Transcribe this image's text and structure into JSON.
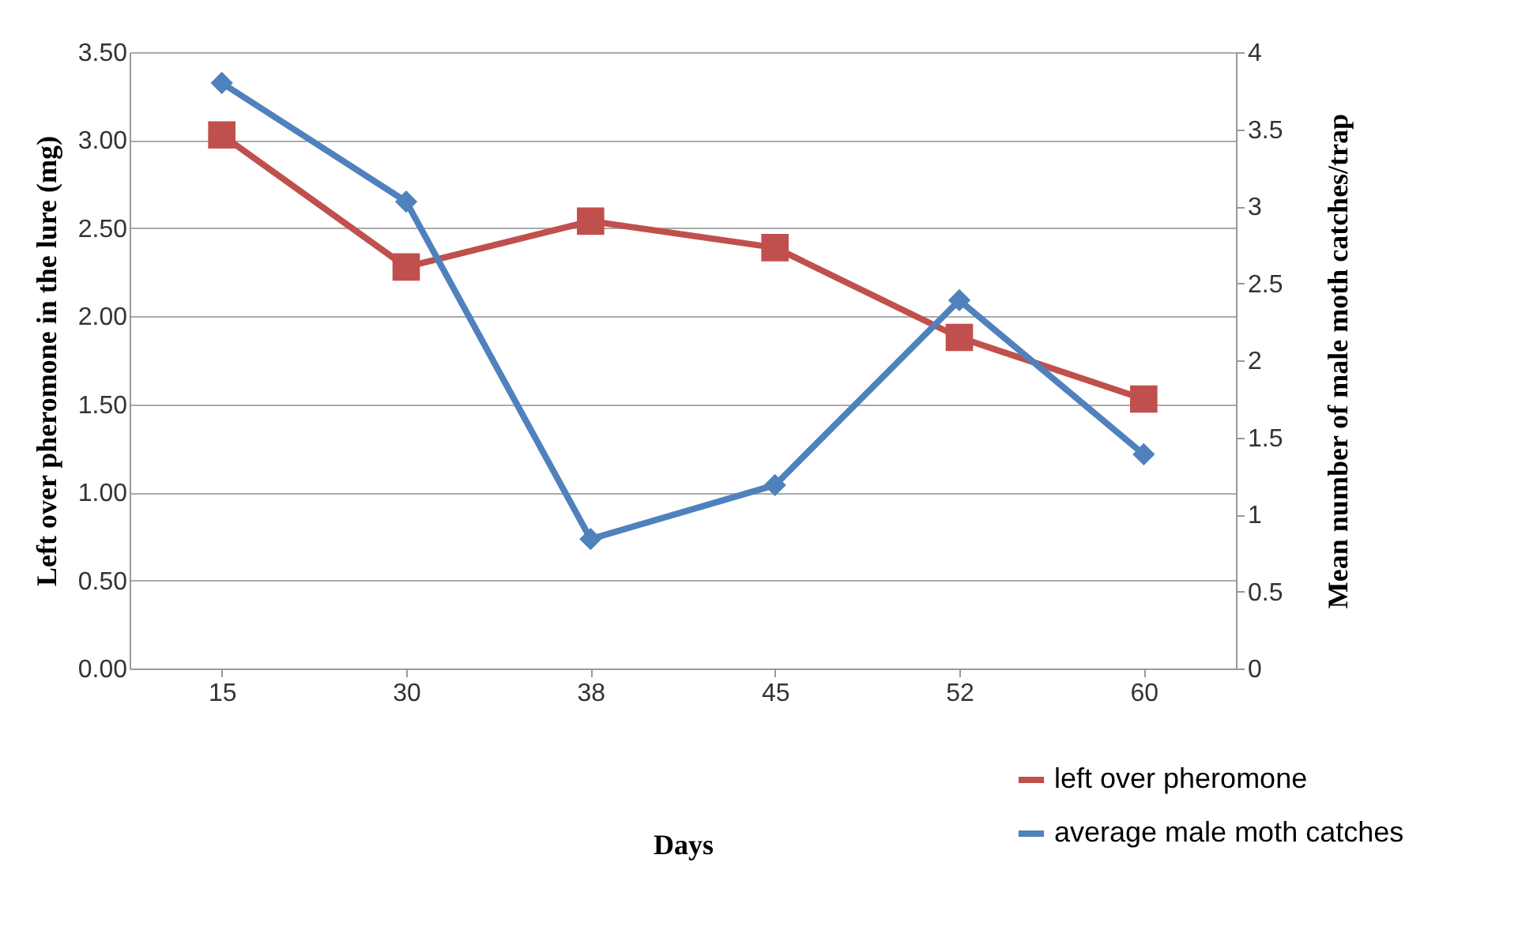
{
  "chart_data": {
    "type": "line",
    "xlabel": "Days",
    "ylabel": "Left over pheromone in the lure  (mg)",
    "y2label": "Mean number  of male moth catches/trap",
    "categories": [
      "15",
      "30",
      "38",
      "45",
      "52",
      "60"
    ],
    "series": [
      {
        "name": "left over pheromone",
        "color": "#c0504d",
        "marker": "square",
        "values": [
          3.03,
          2.28,
          2.54,
          2.39,
          1.88,
          1.53
        ]
      },
      {
        "name": "average male moth catches",
        "color": "#4f81bd",
        "marker": "diamond",
        "axis": "y2",
        "values": [
          3.8,
          3.03,
          0.84,
          1.19,
          2.39,
          1.39
        ]
      }
    ],
    "ylim": [
      0,
      3.5
    ],
    "yticks": [
      {
        "value": 0,
        "label": "0.00"
      },
      {
        "value": 0.5,
        "label": "0.50"
      },
      {
        "value": 1,
        "label": "1.00"
      },
      {
        "value": 1.5,
        "label": "1.50"
      },
      {
        "value": 2,
        "label": "2.00"
      },
      {
        "value": 2.5,
        "label": "2.50"
      },
      {
        "value": 3,
        "label": "3.00"
      },
      {
        "value": 3.5,
        "label": "3.50"
      }
    ],
    "y2lim": [
      0,
      4
    ],
    "y2ticks": [
      0,
      0.5,
      1,
      1.5,
      2,
      2.5,
      3,
      3.5,
      4
    ],
    "grid": "y",
    "legend": "bottom right",
    "line_style": "solid"
  }
}
